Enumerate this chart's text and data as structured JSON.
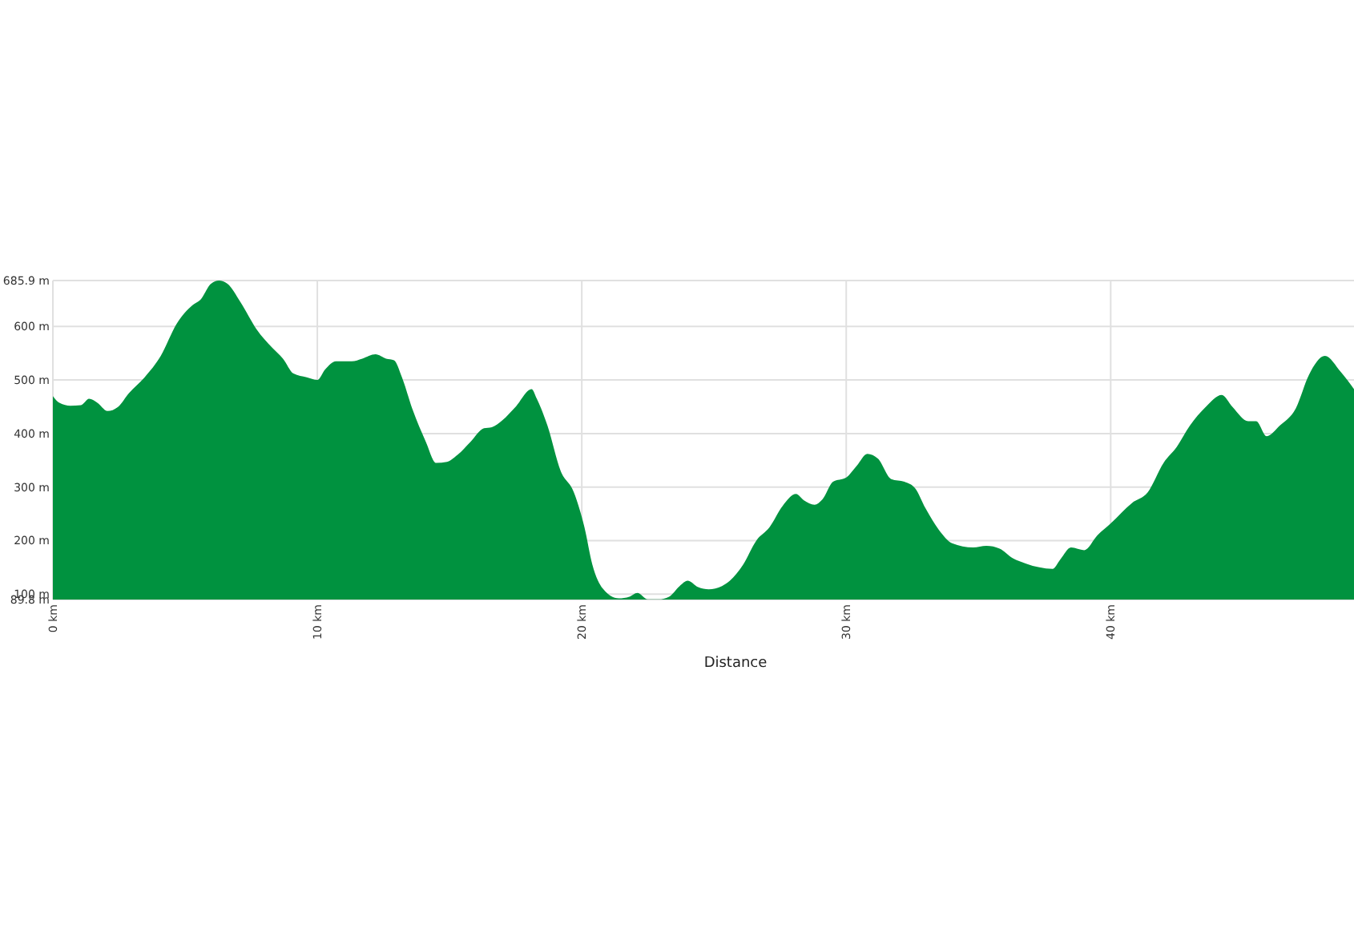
{
  "chart_data": {
    "type": "area",
    "xlabel": "Distance",
    "color": "#00923f",
    "grid": true,
    "x": [
      0,
      0.26,
      0.66,
      1.06,
      1.37,
      1.67,
      2.07,
      2.47,
      2.87,
      3.47,
      4.08,
      4.68,
      5.28,
      5.58,
      5.98,
      6.28,
      6.6,
      7.1,
      7.7,
      8.3,
      8.7,
      9.1,
      9.6,
      10.0,
      10.3,
      10.7,
      11.3,
      11.7,
      12.2,
      12.6,
      12.9,
      13.2,
      13.6,
      14.1,
      14.5,
      14.9,
      15.3,
      15.8,
      16.3,
      16.6,
      17.0,
      17.5,
      18.1,
      18.3,
      18.7,
      19.2,
      19.7,
      20.1,
      20.4,
      20.8,
      21.4,
      21.8,
      22.1,
      22.5,
      22.9,
      23.3,
      23.7,
      24.0,
      24.4,
      24.8,
      25.3,
      25.6,
      26.1,
      26.6,
      27.1,
      27.6,
      28.1,
      28.4,
      28.8,
      29.1,
      29.5,
      30.0,
      30.4,
      30.8,
      31.2,
      31.7,
      32.2,
      32.6,
      33.0,
      33.5,
      34.0,
      34.8,
      35.3,
      35.8,
      36.3,
      36.8,
      37.3,
      37.8,
      38.1,
      38.5,
      39.0,
      39.5,
      40.0,
      40.8,
      41.4,
      42.0,
      42.5,
      43.0,
      43.6,
      44.2,
      44.6,
      45.2,
      45.5,
      45.9,
      46.4,
      47.0,
      47.5,
      48.1,
      48.7,
      49.2
    ],
    "values": [
      470,
      457,
      452,
      453,
      465,
      458,
      442,
      450,
      475,
      505,
      545,
      605,
      640,
      650,
      680,
      685.9,
      680,
      645,
      595,
      560,
      540,
      512,
      505,
      500,
      520,
      535,
      535,
      540,
      548,
      540,
      537,
      505,
      445,
      385,
      345,
      347,
      360,
      385,
      410,
      412,
      425,
      450,
      483,
      465,
      415,
      330,
      290,
      225,
      155,
      110,
      92,
      95,
      102,
      90,
      90,
      95,
      115,
      125,
      113,
      109,
      115,
      125,
      155,
      200,
      225,
      265,
      287,
      275,
      267,
      277,
      310,
      318,
      340,
      362,
      353,
      315,
      310,
      298,
      260,
      220,
      195,
      187,
      190,
      185,
      167,
      157,
      150,
      147,
      165,
      187,
      182,
      210,
      232,
      270,
      290,
      345,
      375,
      415,
      450,
      472,
      450,
      423,
      423,
      395,
      415,
      447,
      510,
      545,
      515,
      483
    ],
    "xlim": [
      0,
      49.2
    ],
    "ylim": [
      89.8,
      685.9
    ],
    "xticks": [
      {
        "value": 0,
        "label": "0 km"
      },
      {
        "value": 10,
        "label": "10 km"
      },
      {
        "value": 20,
        "label": "20 km"
      },
      {
        "value": 30,
        "label": "30 km"
      },
      {
        "value": 40,
        "label": "40 km"
      }
    ],
    "yticks": [
      {
        "value": 89.8,
        "label": "89.8 m"
      },
      {
        "value": 100,
        "label": "100 m"
      },
      {
        "value": 200,
        "label": "200 m"
      },
      {
        "value": 300,
        "label": "300 m"
      },
      {
        "value": 400,
        "label": "400 m"
      },
      {
        "value": 500,
        "label": "500 m"
      },
      {
        "value": 600,
        "label": "600 m"
      },
      {
        "value": 685.9,
        "label": "685.9 m"
      }
    ]
  }
}
